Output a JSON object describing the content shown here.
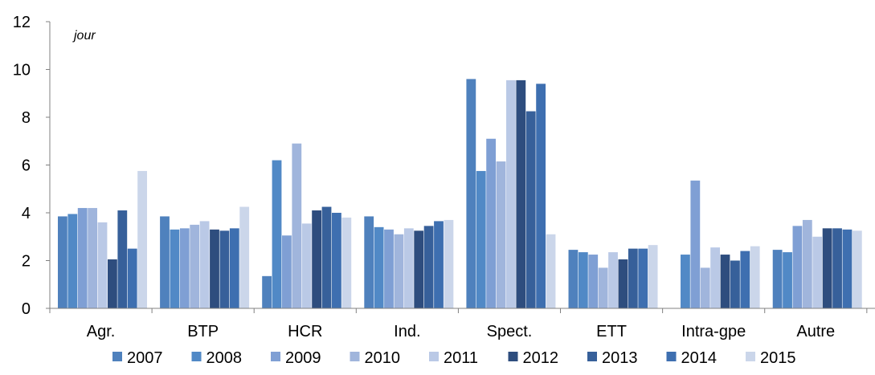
{
  "chart_data": {
    "type": "bar",
    "title": "",
    "xlabel": "",
    "ylabel": "",
    "unit_label": "jour",
    "ylim": [
      0,
      12
    ],
    "yticks": [
      "0",
      "2",
      "4",
      "6",
      "8",
      "10",
      "12"
    ],
    "grid": false,
    "legend_position": "bottom",
    "categories": [
      "Agr.",
      "BTP",
      "HCR",
      "Ind.",
      "Spect.",
      "ETT",
      "Intra-gpe",
      "Autre"
    ],
    "series": [
      {
        "name": "2007",
        "color": "#4f81bd",
        "values": [
          3.85,
          3.85,
          1.35,
          3.85,
          9.6,
          2.45,
          null,
          2.45
        ]
      },
      {
        "name": "2008",
        "color": "#5189c6",
        "values": [
          3.95,
          3.3,
          6.2,
          3.4,
          5.75,
          2.35,
          2.25,
          2.35
        ]
      },
      {
        "name": "2009",
        "color": "#7f9fd4",
        "values": [
          4.2,
          3.35,
          3.05,
          3.3,
          7.1,
          2.25,
          5.35,
          3.45
        ]
      },
      {
        "name": "2010",
        "color": "#a0b5dc",
        "values": [
          4.2,
          3.5,
          6.9,
          3.1,
          6.15,
          1.7,
          1.7,
          3.7
        ]
      },
      {
        "name": "2011",
        "color": "#bac9e6",
        "values": [
          3.6,
          3.65,
          3.55,
          3.35,
          9.55,
          2.35,
          2.55,
          3.0
        ]
      },
      {
        "name": "2012",
        "color": "#2e4d7e",
        "values": [
          2.05,
          3.3,
          4.1,
          3.25,
          9.55,
          2.05,
          2.25,
          3.35
        ]
      },
      {
        "name": "2013",
        "color": "#37609a",
        "values": [
          4.1,
          3.25,
          4.25,
          3.45,
          8.25,
          2.5,
          2.0,
          3.35
        ]
      },
      {
        "name": "2014",
        "color": "#3e6fb0",
        "values": [
          2.5,
          3.35,
          4.0,
          3.65,
          9.4,
          2.5,
          2.4,
          3.3
        ]
      },
      {
        "name": "2015",
        "color": "#cbd6ea",
        "values": [
          5.75,
          4.25,
          3.8,
          3.7,
          3.1,
          2.65,
          2.6,
          3.25
        ]
      }
    ]
  }
}
